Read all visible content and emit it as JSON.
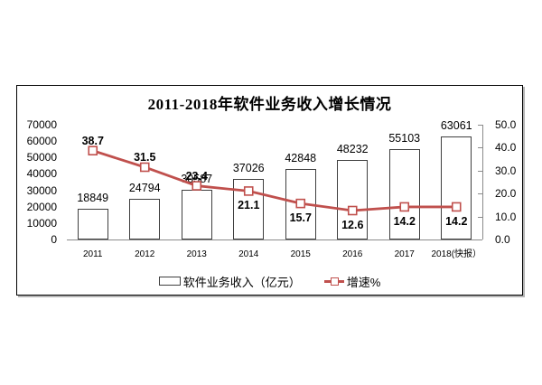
{
  "chart_data": {
    "type": "bar+line combo",
    "title": "2011-2018年软件业务收入增长情况",
    "categories": [
      "2011",
      "2012",
      "2013",
      "2014",
      "2015",
      "2016",
      "2017",
      "2018(快报）"
    ],
    "series": [
      {
        "name": "软件业务收入（亿元）",
        "type": "bar",
        "axis": "left",
        "values": [
          18849,
          24794,
          30587,
          37026,
          42848,
          48232,
          55103,
          63061
        ],
        "data_labels": [
          "18849",
          "24794",
          "30587",
          "37026",
          "42848",
          "48232",
          "55103",
          "63061"
        ]
      },
      {
        "name": "增速%",
        "type": "line",
        "axis": "right",
        "values": [
          38.7,
          31.5,
          23.4,
          21.1,
          15.7,
          12.6,
          14.2,
          14.2
        ],
        "data_labels": [
          "38.7",
          "31.5",
          "23.4",
          "21.1",
          "15.7",
          "12.6",
          "14.2",
          "14.2"
        ],
        "label_sides": [
          "above",
          "above",
          "above",
          "below",
          "below",
          "below",
          "below",
          "below"
        ]
      }
    ],
    "left_axis": {
      "min": 0,
      "max": 70000,
      "tick_labels": [
        "0",
        "10000",
        "20000",
        "30000",
        "40000",
        "50000",
        "60000",
        "70000"
      ]
    },
    "right_axis": {
      "min": 0,
      "max": 50,
      "tick_labels": [
        "0.0",
        "10.0",
        "20.0",
        "30.0",
        "40.0",
        "50.0"
      ]
    },
    "grid": false,
    "legend_position": "bottom",
    "colors": {
      "line": "#c0504d",
      "marker_fill": "#ffffff",
      "bar_fill": "#ffffff",
      "bar_border": "#3f3f3f",
      "axis_line": "#8a8a8a",
      "text": "#000000"
    },
    "legend": [
      {
        "swatch": "bar",
        "label": "软件业务收入（亿元）"
      },
      {
        "swatch": "line",
        "label": "增速%"
      }
    ]
  }
}
